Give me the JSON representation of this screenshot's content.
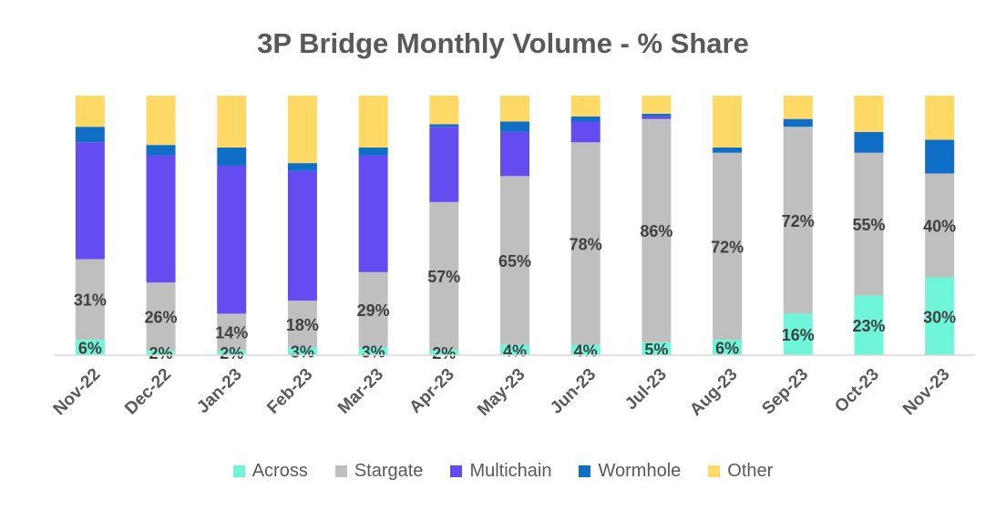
{
  "chart_data": {
    "type": "bar",
    "stacked": true,
    "title": "3P Bridge Monthly Volume - % Share",
    "xlabel": "",
    "ylabel": "",
    "ylim": [
      0,
      100
    ],
    "grid": false,
    "legend_position": "bottom",
    "categories": [
      "Nov-22",
      "Dec-22",
      "Jan-23",
      "Feb-23",
      "Mar-23",
      "Apr-23",
      "May-23",
      "Jun-23",
      "Jul-23",
      "Aug-23",
      "Sep-23",
      "Oct-23",
      "Nov-23"
    ],
    "series": [
      {
        "name": "Across",
        "color": "#6ff5d8",
        "values": [
          6,
          2,
          2,
          3,
          3,
          2,
          4,
          4,
          5,
          6,
          16,
          23,
          30
        ],
        "labels": [
          "6%",
          "2%",
          "2%",
          "3%",
          "3%",
          "2%",
          "4%",
          "4%",
          "5%",
          "6%",
          "16%",
          "23%",
          "30%"
        ]
      },
      {
        "name": "Stargate",
        "color": "#bfbfbf",
        "values": [
          31,
          26,
          14,
          18,
          29,
          57,
          65,
          78,
          86,
          72,
          72,
          55,
          40
        ],
        "labels": [
          "31%",
          "26%",
          "14%",
          "18%",
          "29%",
          "57%",
          "65%",
          "78%",
          "86%",
          "72%",
          "72%",
          "55%",
          "40%"
        ]
      },
      {
        "name": "Multichain",
        "color": "#654cf0",
        "values": [
          45,
          49,
          57,
          50,
          45,
          29,
          17,
          8,
          1,
          0,
          0,
          0,
          0
        ]
      },
      {
        "name": "Wormhole",
        "color": "#0f6fc6",
        "values": [
          6,
          4,
          7,
          3,
          3,
          1,
          4,
          2,
          1,
          2,
          3,
          8,
          13
        ]
      },
      {
        "name": "Other",
        "color": "#ffd966",
        "values": [
          12,
          19,
          20,
          26,
          20,
          11,
          10,
          8,
          7,
          20,
          9,
          14,
          17
        ]
      }
    ]
  }
}
